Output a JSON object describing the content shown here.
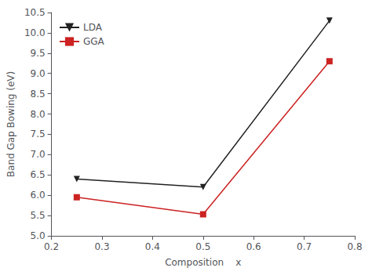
{
  "chart_data": {
    "type": "line",
    "x": [
      0.25,
      0.5,
      0.75
    ],
    "series": [
      {
        "name": "LDA",
        "color": "#222222",
        "marker": "triangle_down",
        "values": [
          6.4,
          6.2,
          10.3
        ]
      },
      {
        "name": "GGA",
        "color": "#cc2222",
        "marker": "square",
        "values": [
          5.95,
          5.53,
          9.3
        ]
      }
    ],
    "xlabel": "Composition    x",
    "ylabel": "Band Gap Bowing (eV)",
    "xlim": [
      0.2,
      0.8
    ],
    "ylim": [
      5.0,
      10.5
    ],
    "xticks": [
      0.2,
      0.3,
      0.4,
      0.5,
      0.6,
      0.7,
      0.8
    ],
    "yticks": [
      {
        "value": 5,
        "label": "5.0"
      },
      5.5,
      {
        "value": 6,
        "label": "6.0"
      },
      6.5,
      {
        "value": 7,
        "label": "7.0"
      },
      7.5,
      {
        "value": 8,
        "label": "8.0"
      },
      8.5,
      {
        "value": 9,
        "label": "9.0"
      },
      9.5,
      {
        "value": 10,
        "label": "10.0"
      },
      10.5
    ],
    "grid": false,
    "legend": "upper left"
  }
}
